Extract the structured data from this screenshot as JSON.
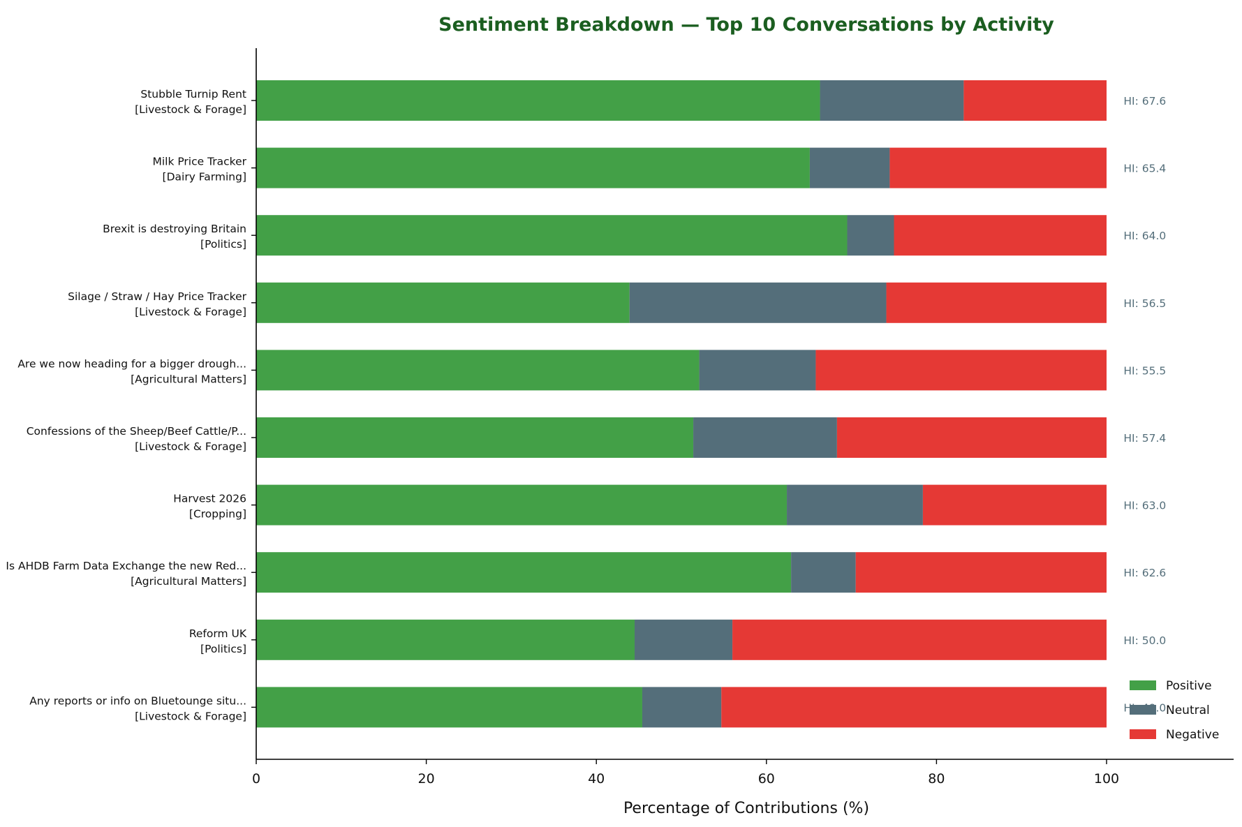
{
  "chart_data": {
    "type": "bar",
    "orientation": "horizontal",
    "stacked": true,
    "title": "Sentiment Breakdown — Top 10 Conversations by Activity",
    "xlabel": "Percentage of Contributions (%)",
    "ylabel": "",
    "xlim": [
      0,
      115
    ],
    "xticks": [
      0,
      20,
      40,
      60,
      80,
      100
    ],
    "grid": false,
    "legend_position": "bottom-right",
    "categories": [
      {
        "name": "Stubble Turnip Rent",
        "group": "[Livestock & Forage]"
      },
      {
        "name": "Milk Price Tracker",
        "group": "[Dairy Farming]"
      },
      {
        "name": "Brexit is destroying Britain",
        "group": "[Politics]"
      },
      {
        "name": "Silage / Straw / Hay Price Tracker",
        "group": "[Livestock & Forage]"
      },
      {
        "name": "Are we now heading for a bigger drough...",
        "group": "[Agricultural Matters]"
      },
      {
        "name": "Confessions of the Sheep/Beef Cattle/P...",
        "group": "[Livestock & Forage]"
      },
      {
        "name": "Harvest 2026",
        "group": "[Cropping]"
      },
      {
        "name": "Is AHDB Farm Data Exchange the new Red...",
        "group": "[Agricultural Matters]"
      },
      {
        "name": "Reform UK",
        "group": "[Politics]"
      },
      {
        "name": "Any reports or info on Bluetounge situ...",
        "group": "[Livestock & Forage]"
      }
    ],
    "series": [
      {
        "name": "Positive",
        "color": "#43a047",
        "values": [
          66.3,
          65.1,
          69.5,
          43.9,
          52.1,
          51.4,
          62.4,
          62.9,
          44.5,
          45.4
        ]
      },
      {
        "name": "Neutral",
        "color": "#546e7a",
        "values": [
          16.9,
          9.4,
          5.5,
          30.2,
          13.7,
          16.9,
          16.0,
          7.6,
          11.5,
          9.3
        ]
      },
      {
        "name": "Negative",
        "color": "#e53935",
        "values": [
          16.8,
          25.5,
          25.0,
          25.9,
          34.2,
          31.7,
          21.6,
          29.5,
          44.0,
          45.3
        ]
      }
    ],
    "annotations": [
      "HI: 67.6",
      "HI: 65.4",
      "HI: 64.0",
      "HI: 56.5",
      "HI: 55.5",
      "HI: 57.4",
      "HI: 63.0",
      "HI: 62.6",
      "HI: 50.0",
      "HI: 49.0"
    ],
    "colors": {
      "title": "#1b5e20",
      "annotation": "#546e7a",
      "axis": "#000000"
    }
  }
}
